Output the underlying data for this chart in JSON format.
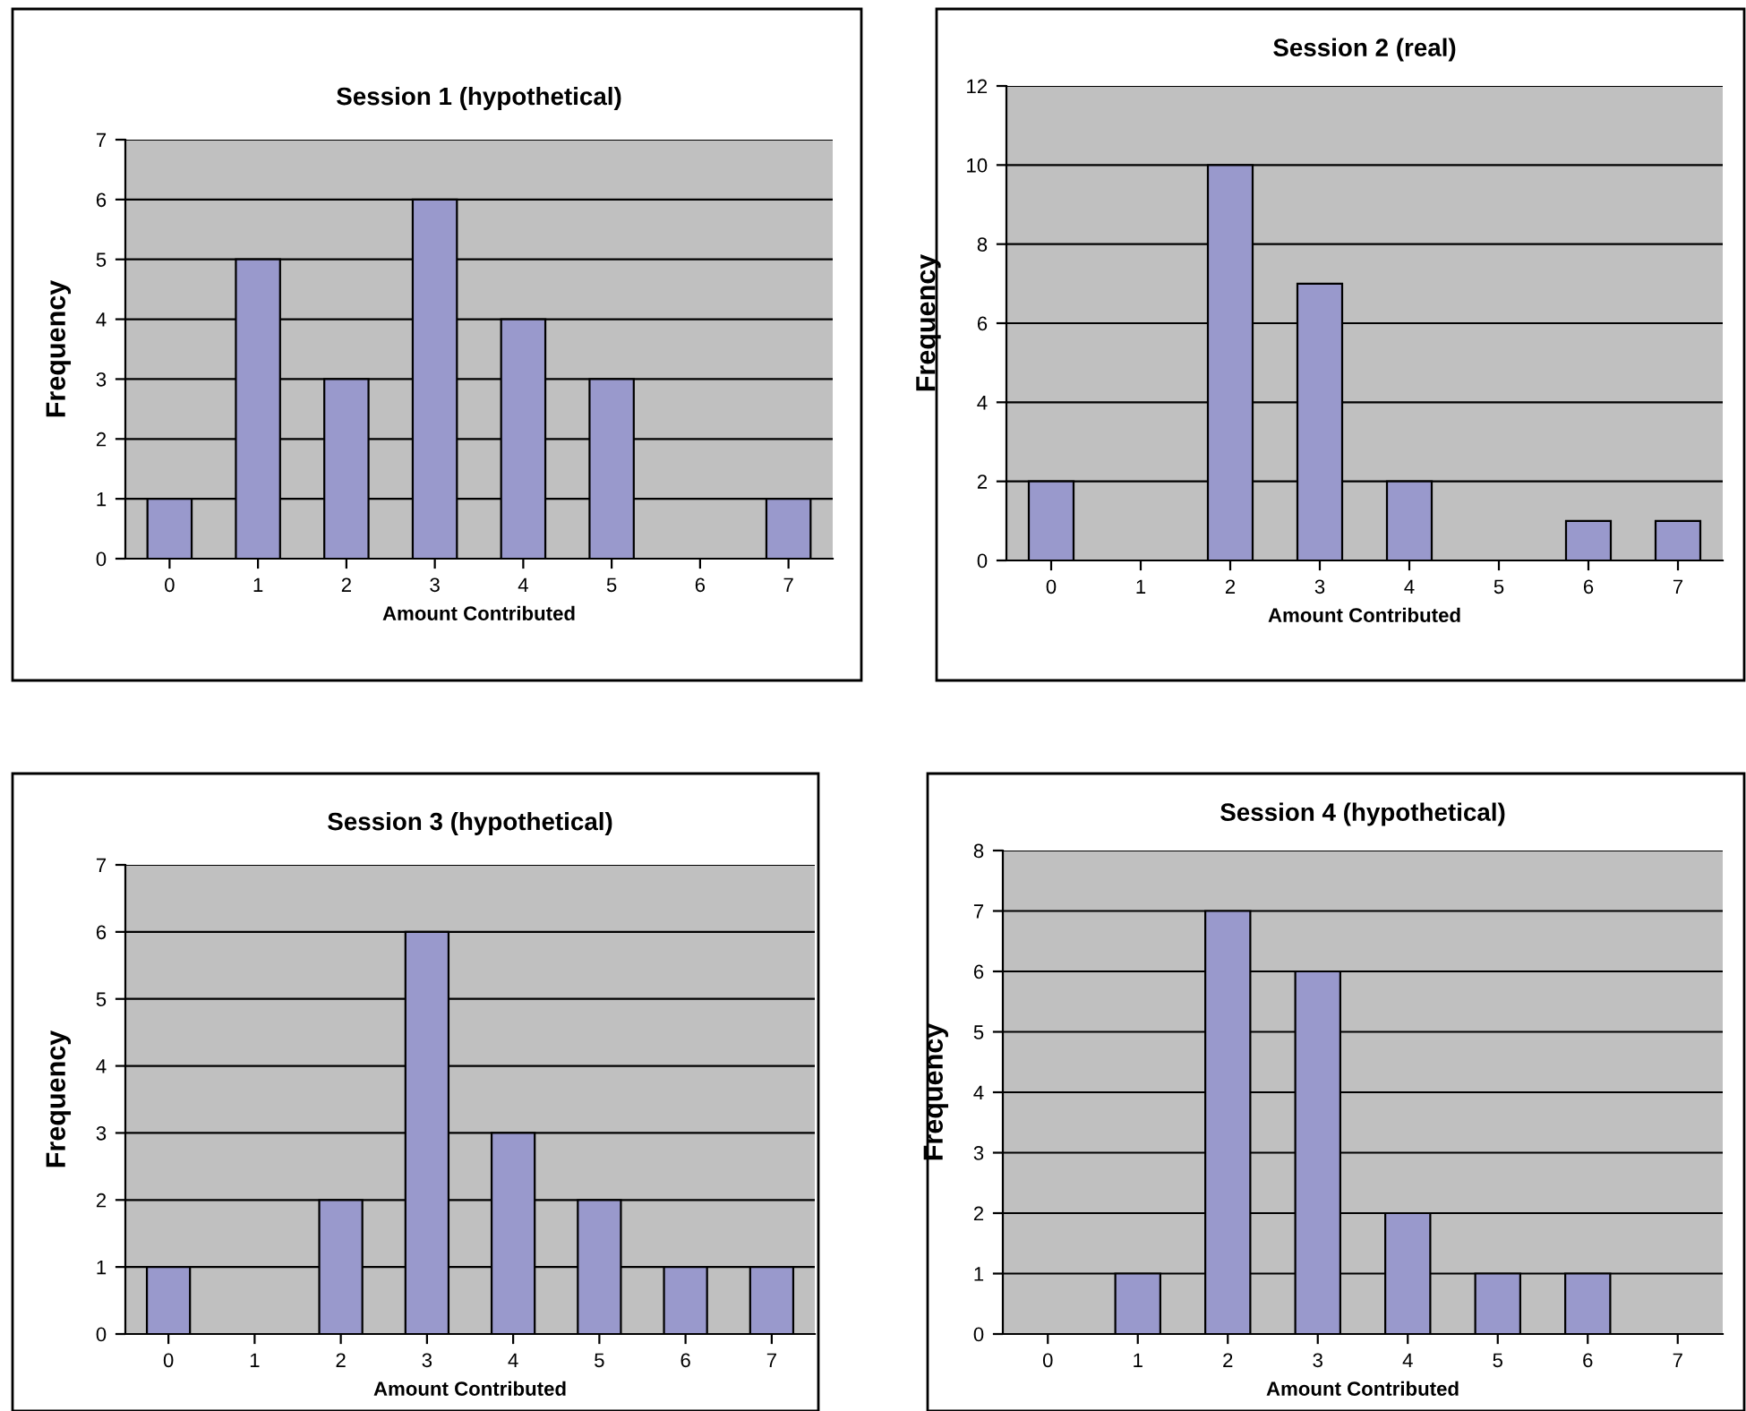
{
  "chart_data": [
    {
      "type": "bar",
      "title": "Session 1 (hypothetical)",
      "xlabel": "Amount Contributed",
      "ylabel": "Frequency",
      "categories": [
        "0",
        "1",
        "2",
        "3",
        "4",
        "5",
        "6",
        "7"
      ],
      "values": [
        1,
        5,
        3,
        6,
        4,
        3,
        0,
        1
      ],
      "color": "#9999cc",
      "ylim": [
        0,
        7
      ],
      "yticks": [
        0,
        1,
        2,
        3,
        4,
        5,
        6,
        7
      ],
      "grid": "y",
      "legend": false
    },
    {
      "type": "bar",
      "title": "Session 2 (real)",
      "xlabel": "Amount Contributed",
      "ylabel": "Frequency",
      "categories": [
        "0",
        "1",
        "2",
        "3",
        "4",
        "5",
        "6",
        "7"
      ],
      "values": [
        2,
        0,
        10,
        7,
        2,
        0,
        1,
        1
      ],
      "color": "#9999cc",
      "ylim": [
        0,
        12
      ],
      "yticks": [
        0,
        2,
        4,
        6,
        8,
        10,
        12
      ],
      "grid": "y",
      "legend": false
    },
    {
      "type": "bar",
      "title": "Session 3 (hypothetical)",
      "xlabel": "Amount Contributed",
      "ylabel": "Frequency",
      "categories": [
        "0",
        "1",
        "2",
        "3",
        "4",
        "5",
        "6",
        "7"
      ],
      "values": [
        1,
        0,
        2,
        6,
        3,
        2,
        1,
        1
      ],
      "color": "#9999cc",
      "ylim": [
        0,
        7
      ],
      "yticks": [
        0,
        1,
        2,
        3,
        4,
        5,
        6,
        7
      ],
      "grid": "y",
      "legend": false
    },
    {
      "type": "bar",
      "title": "Session 4 (hypothetical)",
      "xlabel": "Amount Contributed",
      "ylabel": "Frequency",
      "categories": [
        "0",
        "1",
        "2",
        "3",
        "4",
        "5",
        "6",
        "7"
      ],
      "values": [
        0,
        1,
        7,
        6,
        2,
        1,
        1,
        0
      ],
      "color": "#9999cc",
      "ylim": [
        0,
        8
      ],
      "yticks": [
        0,
        1,
        2,
        3,
        4,
        5,
        6,
        7,
        8
      ],
      "grid": "y",
      "legend": false
    }
  ]
}
